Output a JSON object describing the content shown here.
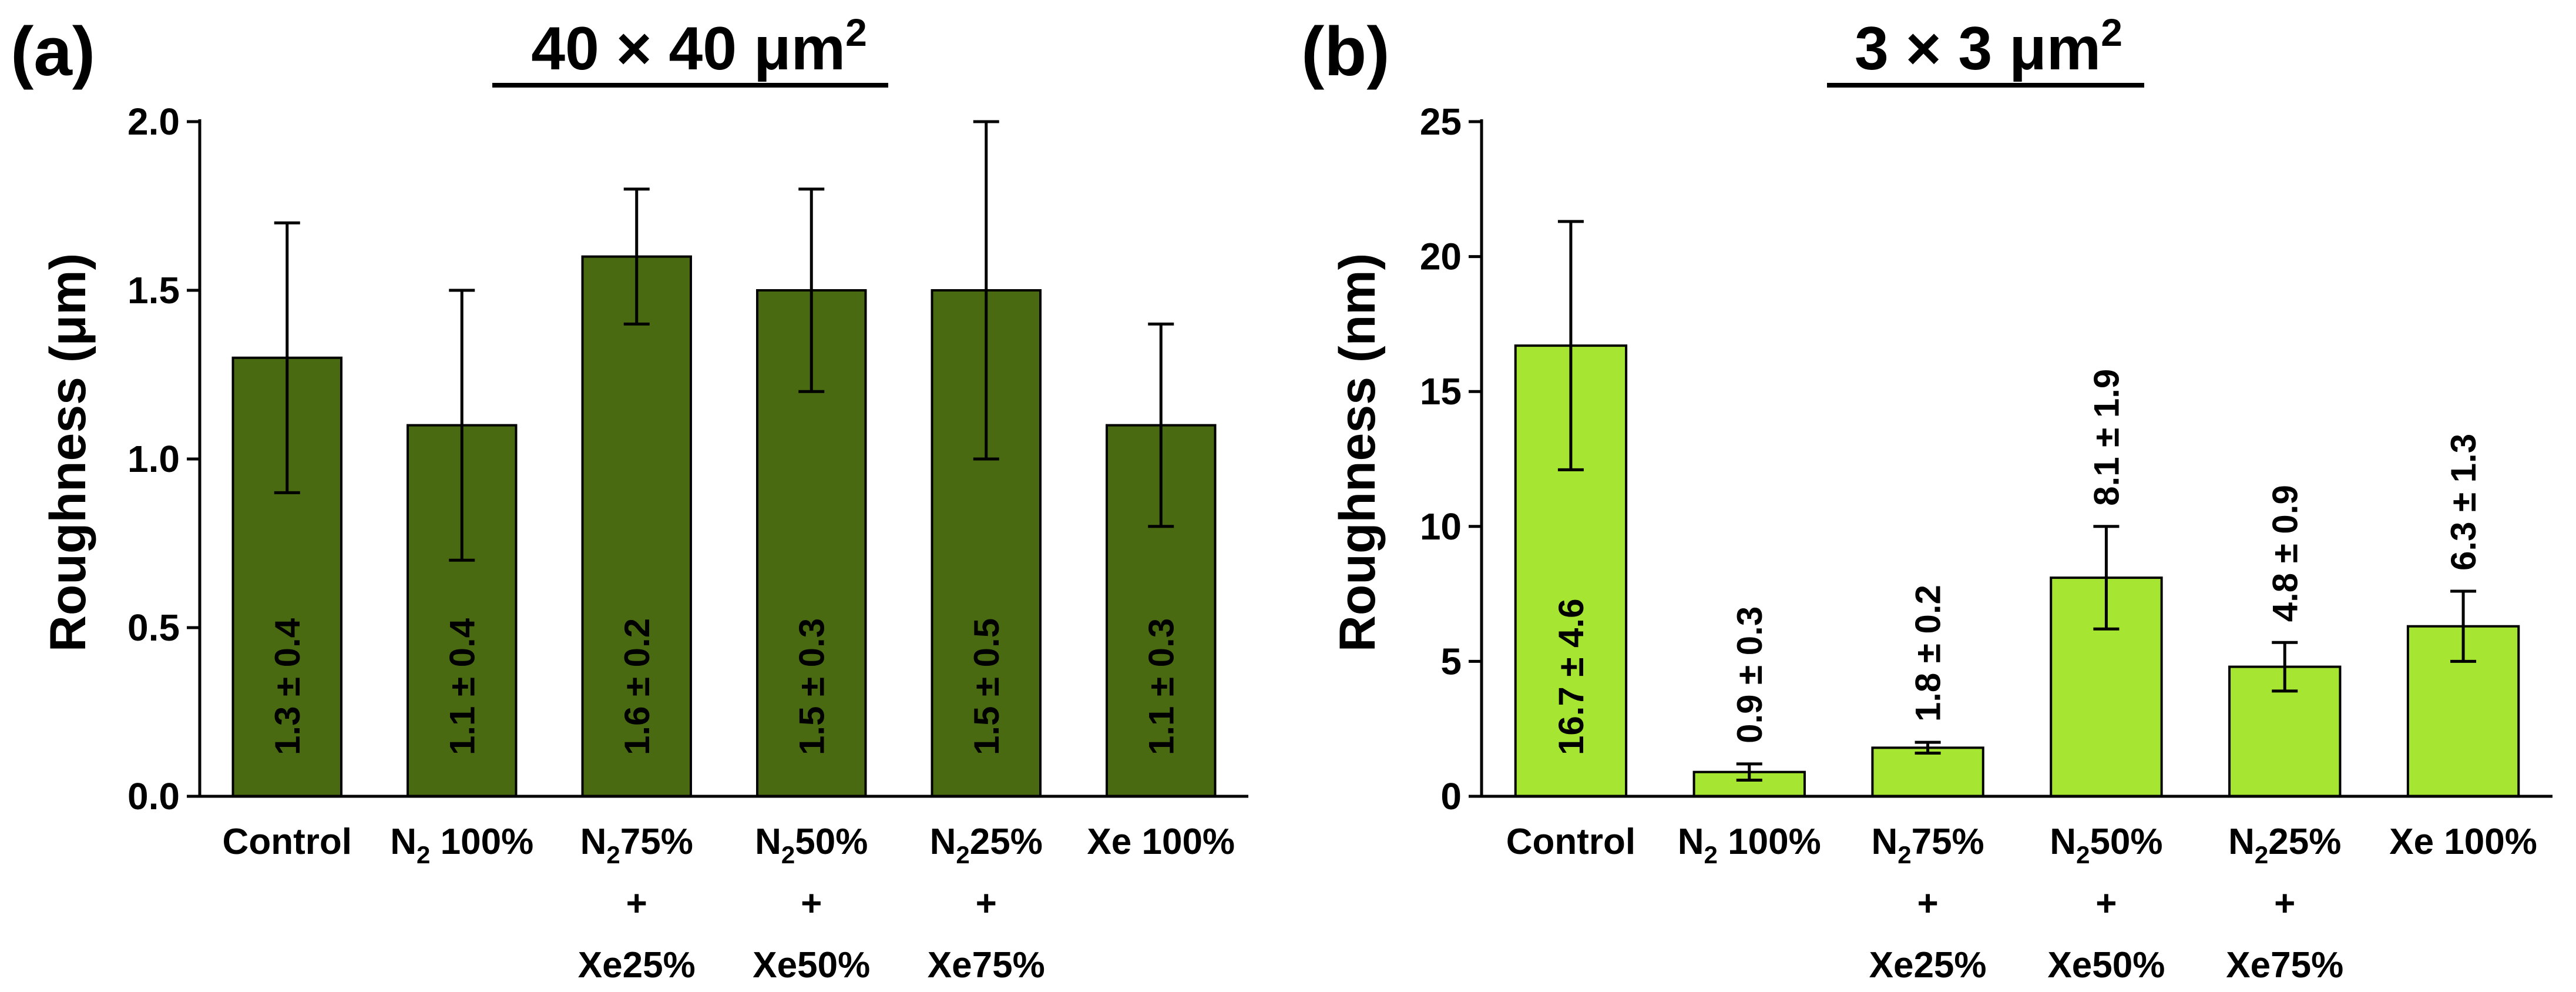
{
  "chart_data": [
    {
      "type": "bar",
      "panel_label": "(a)",
      "title": "40 × 40 μm",
      "title_superscript": "2",
      "xlabel": "",
      "ylabel": "Roughness (μm)",
      "ylim": [
        0,
        2.0
      ],
      "yticks": [
        "0.0",
        "0.5",
        "1.0",
        "1.5",
        "2.0"
      ],
      "ytick_values": [
        0,
        0.5,
        1.0,
        1.5,
        2.0
      ],
      "bar_color": "#4a6a12",
      "categories": [
        {
          "line1_main": "Control",
          "line1_sub": "",
          "line1_rest": "",
          "line2": "",
          "line3": ""
        },
        {
          "line1_main": "N",
          "line1_sub": "2",
          "line1_rest": " 100%",
          "line2": "",
          "line3": ""
        },
        {
          "line1_main": "N",
          "line1_sub": "2",
          "line1_rest": "75%",
          "line2": "+",
          "line3": "Xe25%"
        },
        {
          "line1_main": "N",
          "line1_sub": "2",
          "line1_rest": "50%",
          "line2": "+",
          "line3": "Xe50%"
        },
        {
          "line1_main": "N",
          "line1_sub": "2",
          "line1_rest": "25%",
          "line2": "+",
          "line3": "Xe75%"
        },
        {
          "line1_main": "Xe 100%",
          "line1_sub": "",
          "line1_rest": "",
          "line2": "",
          "line3": ""
        }
      ],
      "values": [
        1.3,
        1.1,
        1.6,
        1.5,
        1.5,
        1.1
      ],
      "errors": [
        0.4,
        0.4,
        0.2,
        0.3,
        0.5,
        0.3
      ],
      "value_labels": [
        "1.3 ± 0.4",
        "1.1 ± 0.4",
        "1.6 ± 0.2",
        "1.5 ± 0.3",
        "1.5 ± 0.5",
        "1.1 ± 0.3"
      ],
      "value_label_placement": "inside"
    },
    {
      "type": "bar",
      "panel_label": "(b)",
      "title": "3 × 3 μm",
      "title_superscript": "2",
      "xlabel": "",
      "ylabel": "Roughness (nm)",
      "ylim": [
        0,
        25
      ],
      "yticks": [
        "0",
        "5",
        "10",
        "15",
        "20",
        "25"
      ],
      "ytick_values": [
        0,
        5,
        10,
        15,
        20,
        25
      ],
      "bar_color": "#a6e633",
      "categories": [
        {
          "line1_main": "Control",
          "line1_sub": "",
          "line1_rest": "",
          "line2": "",
          "line3": ""
        },
        {
          "line1_main": "N",
          "line1_sub": "2",
          "line1_rest": " 100%",
          "line2": "",
          "line3": ""
        },
        {
          "line1_main": "N",
          "line1_sub": "2",
          "line1_rest": "75%",
          "line2": "+",
          "line3": "Xe25%"
        },
        {
          "line1_main": "N",
          "line1_sub": "2",
          "line1_rest": "50%",
          "line2": "+",
          "line3": "Xe50%"
        },
        {
          "line1_main": "N",
          "line1_sub": "2",
          "line1_rest": "25%",
          "line2": "+",
          "line3": "Xe75%"
        },
        {
          "line1_main": "Xe 100%",
          "line1_sub": "",
          "line1_rest": "",
          "line2": "",
          "line3": ""
        }
      ],
      "values": [
        16.7,
        0.9,
        1.8,
        8.1,
        4.8,
        6.3
      ],
      "errors": [
        4.6,
        0.3,
        0.2,
        1.9,
        0.9,
        1.3
      ],
      "value_labels": [
        "16.7 ± 4.6",
        "0.9 ± 0.3",
        "1.8 ± 0.2",
        "8.1 ± 1.9",
        "4.8 ± 0.9",
        "6.3 ± 1.3"
      ],
      "value_label_placement": [
        "inside",
        "above",
        "above",
        "above",
        "above",
        "above"
      ]
    }
  ]
}
